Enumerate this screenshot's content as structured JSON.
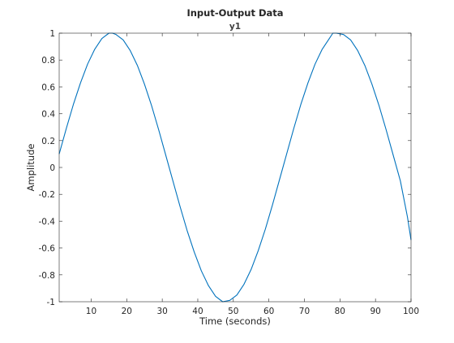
{
  "chart_data": {
    "type": "line",
    "title": "Input-Output Data",
    "subtitle": "y1",
    "xlabel": "Time (seconds)",
    "ylabel": "Amplitude",
    "xlim": [
      1,
      100
    ],
    "ylim": [
      -1,
      1
    ],
    "xticks": [
      10,
      20,
      30,
      40,
      50,
      60,
      70,
      80,
      90,
      100
    ],
    "yticks": [
      -1,
      -0.8,
      -0.6,
      -0.4,
      -0.2,
      0,
      0.2,
      0.4,
      0.6,
      0.8,
      1
    ],
    "ytick_labels": [
      "-1",
      "-0.8",
      "-0.6",
      "-0.4",
      "-0.2",
      "0",
      "0.2",
      "0.4",
      "0.6",
      "0.8",
      "1"
    ],
    "grid": false,
    "series": [
      {
        "color": "#0072bd",
        "x": [
          1,
          3,
          5,
          7,
          9,
          11,
          13,
          15,
          16,
          17,
          19,
          21,
          23,
          25,
          27,
          29,
          31,
          33,
          35,
          37,
          39,
          41,
          43,
          45,
          47,
          49,
          51,
          53,
          55,
          57,
          59,
          61,
          63,
          65,
          67,
          69,
          71,
          73,
          75,
          77,
          78,
          79,
          81,
          83,
          85,
          87,
          89,
          91,
          93,
          95,
          97,
          99,
          100
        ],
        "y": [
          0.1,
          0.29,
          0.47,
          0.63,
          0.77,
          0.88,
          0.96,
          1.0,
          1.0,
          0.99,
          0.95,
          0.87,
          0.76,
          0.62,
          0.46,
          0.28,
          0.09,
          -0.1,
          -0.29,
          -0.47,
          -0.63,
          -0.77,
          -0.88,
          -0.96,
          -1.0,
          -0.99,
          -0.95,
          -0.87,
          -0.76,
          -0.62,
          -0.46,
          -0.28,
          -0.09,
          0.1,
          0.29,
          0.47,
          0.63,
          0.77,
          0.88,
          0.96,
          1.0,
          1.0,
          0.99,
          0.95,
          0.87,
          0.76,
          0.62,
          0.46,
          0.28,
          0.09,
          -0.1,
          -0.37,
          -0.54
        ]
      }
    ]
  }
}
